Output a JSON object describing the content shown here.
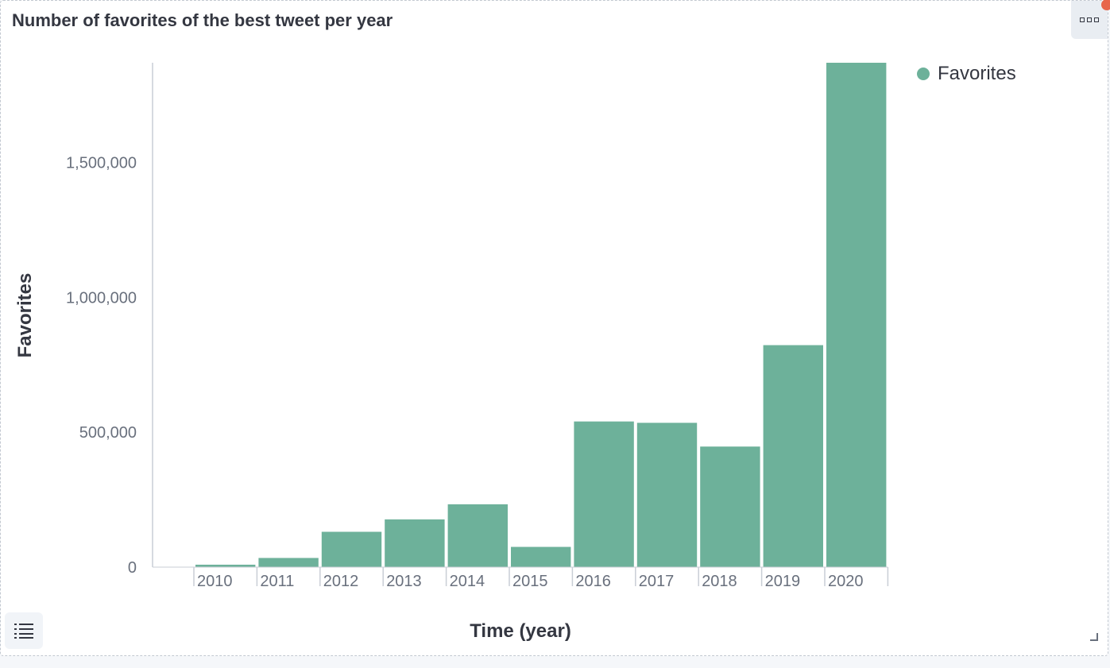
{
  "panel": {
    "title": "Number of favorites of the best tweet per year"
  },
  "icons": {
    "options": "more-options-icon",
    "legend_toggle": "list-icon",
    "resize": "resize-handle-icon"
  },
  "colors": {
    "bar": "#6db19a",
    "axis": "#c9ced6",
    "text": "#343741",
    "tick": "#69707d"
  },
  "chart_data": {
    "type": "bar",
    "xlabel": "Time (year)",
    "ylabel": "Favorites",
    "categories": [
      "2010",
      "2011",
      "2012",
      "2013",
      "2014",
      "2015",
      "2016",
      "2017",
      "2018",
      "2019",
      "2020"
    ],
    "series": [
      {
        "name": "Favorites",
        "values": [
          9000,
          34000,
          131000,
          177000,
          233000,
          75000,
          540000,
          535000,
          447000,
          823000,
          1870000
        ]
      }
    ],
    "yticks": [
      0,
      500000,
      1000000,
      1500000
    ],
    "ytick_labels": [
      "0",
      "500,000",
      "1,000,000",
      "1,500,000"
    ],
    "ylim": [
      0,
      1870000
    ],
    "legend_position": "top-right",
    "grid": false
  }
}
